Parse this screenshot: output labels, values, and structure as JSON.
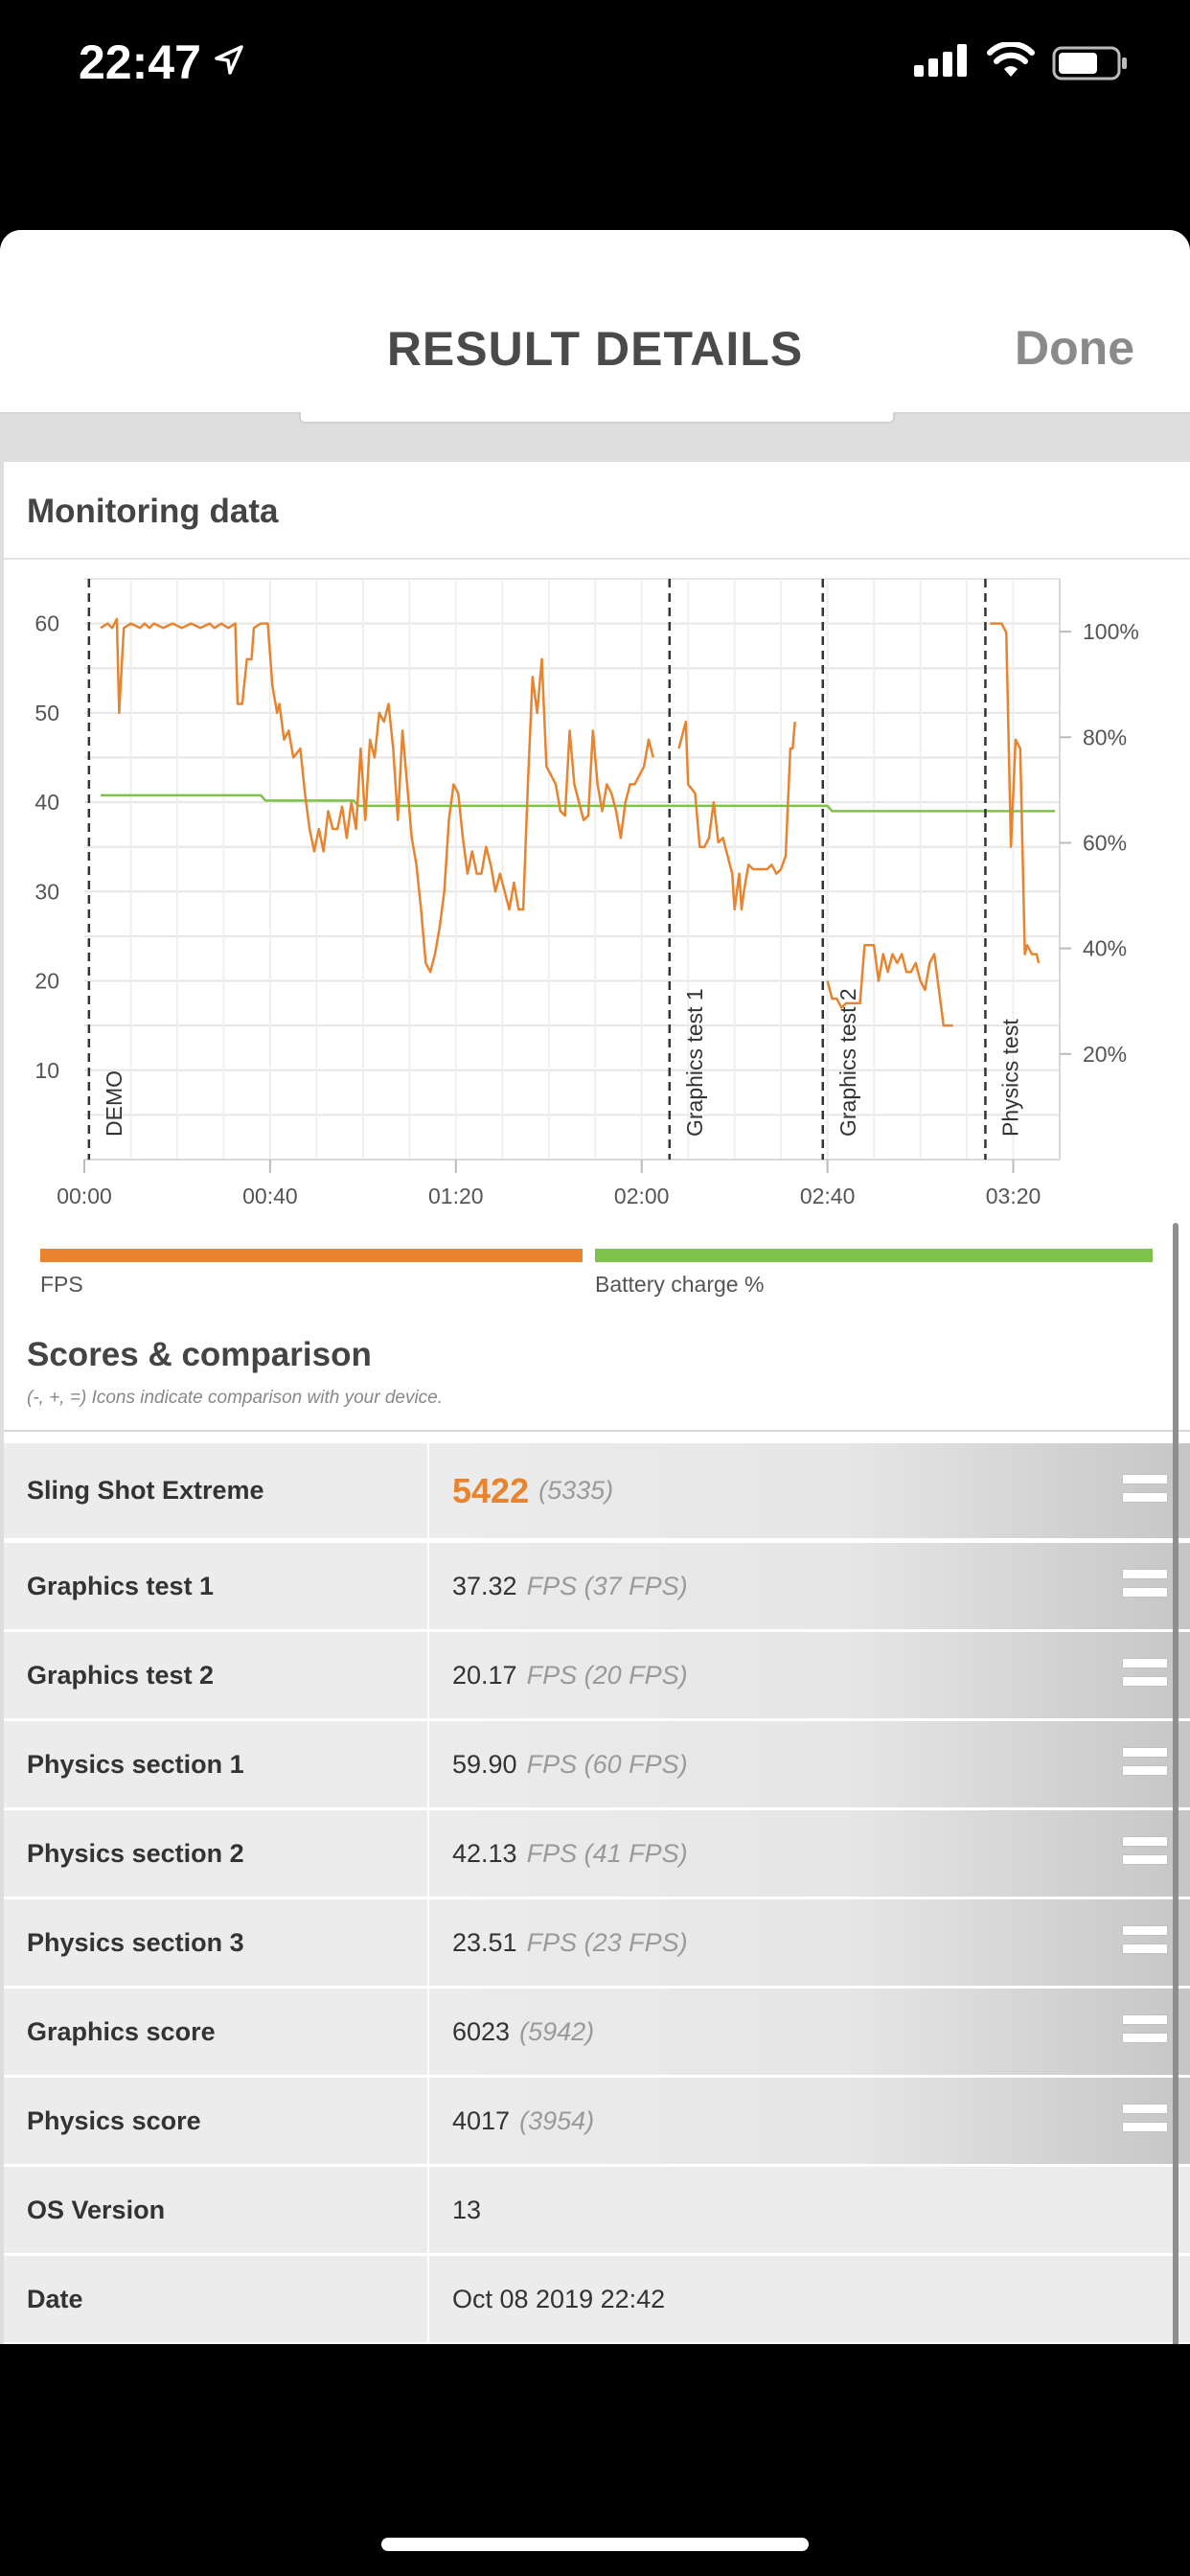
{
  "status_bar": {
    "time": "22:47"
  },
  "header": {
    "title": "RESULT DETAILS",
    "done_label": "Done"
  },
  "monitoring": {
    "title": "Monitoring data",
    "legend": [
      {
        "name": "FPS",
        "color": "#e8832e"
      },
      {
        "name": "Battery charge %",
        "color": "#7dc24b"
      }
    ]
  },
  "chart_data": {
    "type": "line",
    "title": "",
    "x_ticks": [
      "00:00",
      "00:40",
      "01:20",
      "02:00",
      "02:40",
      "03:20"
    ],
    "x_tick_seconds": [
      0,
      40,
      80,
      120,
      160,
      200
    ],
    "xlim": [
      0,
      210
    ],
    "y_left_ticks": [
      "60",
      "50",
      "40",
      "30",
      "20",
      "10"
    ],
    "y_left_values": [
      60,
      50,
      40,
      30,
      20,
      10
    ],
    "ylim_left": [
      0,
      65
    ],
    "y_right_ticks": [
      "100%",
      "80%",
      "60%",
      "40%",
      "20%"
    ],
    "y_right_values": [
      100,
      80,
      60,
      40,
      20
    ],
    "ylim_right": [
      0,
      110
    ],
    "grid": true,
    "markers": [
      {
        "label": "DEMO",
        "x": 1
      },
      {
        "label": "Graphics test 1",
        "x": 126
      },
      {
        "label": "Graphics test 2",
        "x": 159
      },
      {
        "label": "Physics test",
        "x": 194
      }
    ],
    "series": [
      {
        "name": "FPS",
        "color": "#e8832e",
        "segments": [
          [
            [
              3.5,
              59.5
            ],
            [
              5,
              60
            ],
            [
              6,
              59.5
            ],
            [
              7,
              60.5
            ],
            [
              7.5,
              50
            ],
            [
              8.5,
              59.5
            ],
            [
              10,
              60
            ],
            [
              12,
              59.5
            ],
            [
              13,
              60
            ],
            [
              14,
              59.5
            ],
            [
              15,
              60
            ],
            [
              17,
              59.5
            ],
            [
              19,
              60
            ],
            [
              21,
              59.5
            ],
            [
              23,
              60
            ],
            [
              25,
              59.5
            ],
            [
              27,
              60
            ],
            [
              28,
              59.5
            ],
            [
              29.5,
              60
            ],
            [
              31,
              59.5
            ],
            [
              32.5,
              60
            ],
            [
              33,
              51
            ],
            [
              34,
              51
            ],
            [
              35,
              56
            ],
            [
              36,
              56
            ],
            [
              36.5,
              59.5
            ],
            [
              38,
              60
            ],
            [
              39.5,
              60
            ],
            [
              40.5,
              53
            ],
            [
              41.5,
              50
            ],
            [
              42,
              51
            ],
            [
              43,
              47
            ],
            [
              44,
              48
            ],
            [
              45,
              45
            ],
            [
              46.5,
              46
            ],
            [
              47.5,
              41
            ],
            [
              48.5,
              37
            ],
            [
              49.5,
              34.5
            ],
            [
              50.5,
              37
            ],
            [
              51.5,
              34.5
            ],
            [
              52.5,
              39
            ],
            [
              53.5,
              37
            ],
            [
              54.5,
              37
            ],
            [
              55.5,
              39.5
            ],
            [
              56.5,
              36
            ],
            [
              57.5,
              40
            ],
            [
              58.5,
              37
            ],
            [
              59.5,
              46
            ],
            [
              60.5,
              38
            ],
            [
              61.5,
              47
            ],
            [
              62.5,
              45
            ],
            [
              63.5,
              50
            ],
            [
              64.5,
              49
            ],
            [
              65.5,
              51
            ],
            [
              66.5,
              46
            ],
            [
              67.5,
              38
            ],
            [
              68.5,
              48
            ],
            [
              69.5,
              42
            ],
            [
              70.5,
              36
            ],
            [
              71.5,
              33
            ],
            [
              72.5,
              28
            ],
            [
              73.5,
              22
            ],
            [
              74.5,
              21
            ],
            [
              75.5,
              23
            ],
            [
              76.5,
              26
            ],
            [
              77.5,
              30
            ],
            [
              78.5,
              38
            ],
            [
              79.5,
              42
            ],
            [
              80.5,
              41
            ],
            [
              81.5,
              36
            ],
            [
              82.5,
              32
            ],
            [
              83.5,
              34.5
            ],
            [
              84.5,
              32
            ],
            [
              85.5,
              32
            ],
            [
              86.5,
              35
            ],
            [
              87.5,
              33
            ],
            [
              88.5,
              30
            ],
            [
              89.5,
              32
            ],
            [
              90.5,
              30
            ],
            [
              91.5,
              28
            ],
            [
              92.5,
              31
            ],
            [
              93.5,
              28
            ],
            [
              94.5,
              28
            ],
            [
              95.5,
              42
            ],
            [
              96.5,
              54
            ],
            [
              97.5,
              50
            ],
            [
              98.5,
              56
            ],
            [
              99.5,
              44
            ],
            [
              100.5,
              43
            ],
            [
              101.5,
              42
            ],
            [
              102.5,
              39
            ],
            [
              103.5,
              38.5
            ],
            [
              104.5,
              48
            ],
            [
              105.5,
              42
            ],
            [
              106.5,
              40
            ],
            [
              107.5,
              38
            ],
            [
              108.5,
              38.5
            ],
            [
              109.5,
              48
            ],
            [
              110.5,
              42
            ],
            [
              111.5,
              39
            ],
            [
              112.5,
              42
            ],
            [
              113.5,
              41
            ],
            [
              114.5,
              39
            ],
            [
              115.5,
              36
            ],
            [
              116.5,
              40
            ],
            [
              117.5,
              42
            ],
            [
              118.5,
              42
            ],
            [
              119.5,
              43
            ],
            [
              120.5,
              44
            ],
            [
              121.5,
              47
            ],
            [
              122.5,
              45
            ]
          ],
          [
            [
              128,
              46
            ],
            [
              129.5,
              49
            ],
            [
              130,
              42
            ],
            [
              131.5,
              41
            ],
            [
              132.5,
              35
            ],
            [
              133.5,
              35
            ],
            [
              134.5,
              36
            ],
            [
              135.5,
              40
            ],
            [
              136.5,
              35.5
            ],
            [
              137.5,
              36
            ],
            [
              138.5,
              34
            ],
            [
              139.5,
              32
            ],
            [
              140,
              28
            ],
            [
              141,
              32
            ],
            [
              141.5,
              28
            ],
            [
              142,
              30
            ],
            [
              143,
              33
            ],
            [
              144,
              32.5
            ],
            [
              145,
              32.5
            ],
            [
              146,
              32.5
            ],
            [
              147,
              32.5
            ],
            [
              148,
              33
            ],
            [
              149,
              32
            ],
            [
              150,
              32.5
            ],
            [
              151,
              34
            ],
            [
              152,
              46
            ],
            [
              152.5,
              46
            ],
            [
              153,
              49
            ]
          ],
          [
            [
              160,
              20
            ],
            [
              161,
              18
            ],
            [
              162,
              18
            ],
            [
              163,
              17
            ],
            [
              164,
              17.5
            ],
            [
              165,
              17.5
            ],
            [
              166,
              17.5
            ],
            [
              167,
              17.5
            ],
            [
              168,
              24
            ],
            [
              169,
              24
            ],
            [
              170,
              24
            ],
            [
              171,
              20
            ],
            [
              172,
              23
            ],
            [
              173,
              21
            ],
            [
              174,
              23
            ],
            [
              175,
              22
            ],
            [
              176,
              23
            ],
            [
              177,
              21
            ],
            [
              178,
              21
            ],
            [
              179,
              22
            ],
            [
              180,
              20
            ],
            [
              181,
              19
            ],
            [
              182,
              22
            ],
            [
              183,
              23
            ],
            [
              184,
              19
            ],
            [
              185,
              15
            ],
            [
              187,
              15
            ]
          ],
          [
            [
              195,
              60
            ],
            [
              197.5,
              60
            ],
            [
              198.5,
              59
            ],
            [
              199.5,
              35
            ],
            [
              200.5,
              47
            ],
            [
              201.5,
              46
            ],
            [
              202.5,
              23
            ],
            [
              203,
              24
            ],
            [
              204,
              23
            ],
            [
              205,
              23
            ],
            [
              205.5,
              22
            ]
          ]
        ]
      },
      {
        "name": "Battery charge %",
        "color": "#7dc24b",
        "axis": "right",
        "points": [
          [
            3.5,
            69
          ],
          [
            38,
            69
          ],
          [
            39,
            68
          ],
          [
            58,
            68
          ],
          [
            59,
            67
          ],
          [
            160,
            67
          ],
          [
            161,
            66
          ],
          [
            209,
            66
          ]
        ]
      }
    ]
  },
  "scores": {
    "title": "Scores & comparison",
    "subtitle": "(-, +, =) Icons indicate comparison with your device.",
    "rows": [
      {
        "label": "Sling Shot Extreme",
        "value": "5422",
        "comparison": "(5335)",
        "icon": "equal-icon"
      },
      {
        "label": "Graphics test 1",
        "value": "37.32",
        "comparison": "FPS (37 FPS)",
        "icon": "equal-icon"
      },
      {
        "label": "Graphics test 2",
        "value": "20.17",
        "comparison": "FPS (20 FPS)",
        "icon": "equal-icon"
      },
      {
        "label": "Physics section 1",
        "value": "59.90",
        "comparison": "FPS (60 FPS)",
        "icon": "equal-icon"
      },
      {
        "label": "Physics section 2",
        "value": "42.13",
        "comparison": "FPS (41 FPS)",
        "icon": "equal-icon"
      },
      {
        "label": "Physics section 3",
        "value": "23.51",
        "comparison": "FPS (23 FPS)",
        "icon": "equal-icon"
      },
      {
        "label": "Graphics score",
        "value": "6023",
        "comparison": "(5942)",
        "icon": "equal-icon"
      },
      {
        "label": "Physics score",
        "value": "4017",
        "comparison": "(3954)",
        "icon": "equal-icon"
      },
      {
        "label": "OS Version",
        "value": "13",
        "comparison": ""
      },
      {
        "label": "Date",
        "value": "Oct 08 2019 22:42",
        "comparison": ""
      }
    ]
  }
}
